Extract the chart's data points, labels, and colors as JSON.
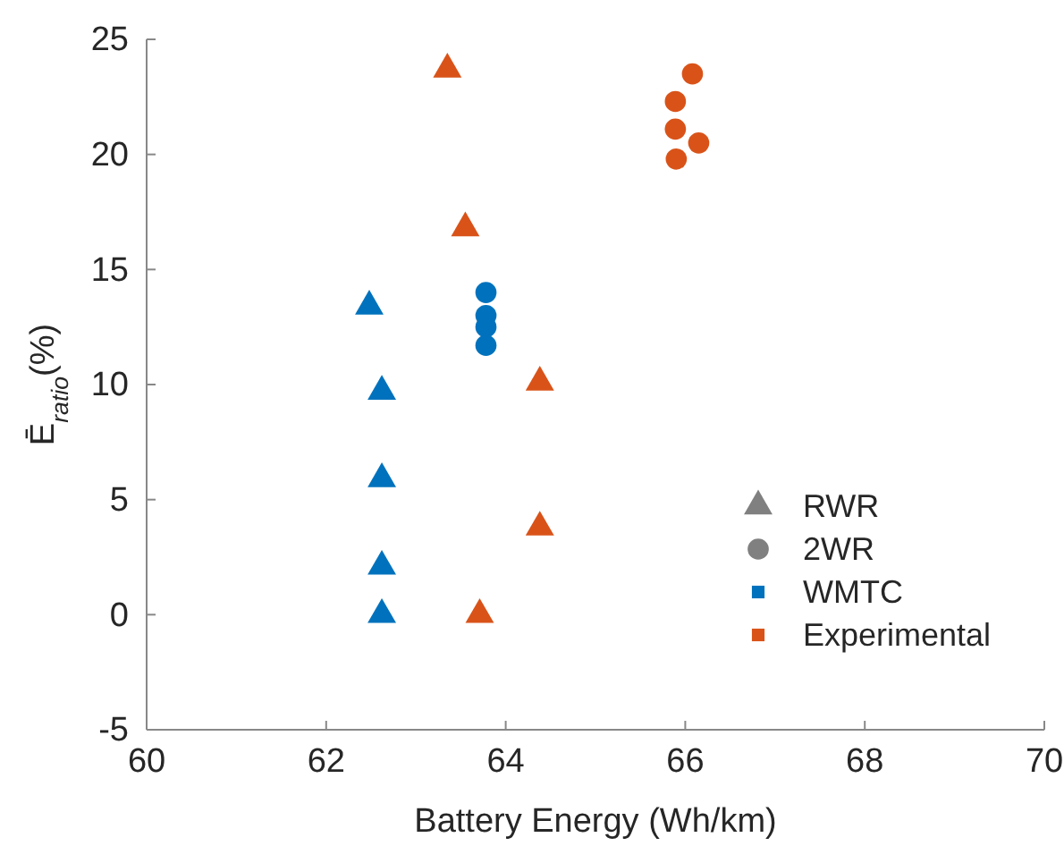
{
  "chart_data": {
    "type": "scatter",
    "xlabel": "Battery Energy (Wh/km)",
    "ylabel": "Ē$_{ratio}$(%)",
    "xlim": [
      60,
      70
    ],
    "xticks": [
      60,
      62,
      64,
      66,
      68,
      70
    ],
    "ylim": [
      -5,
      25
    ],
    "yticks": [
      -5,
      0,
      5,
      10,
      15,
      20,
      25
    ],
    "grid": false,
    "annotations": [
      "RWR",
      "2WR",
      "WMTC",
      "Experimental"
    ],
    "series": [
      {
        "color": "#0072bd",
        "marker": "triangle",
        "x": [
          62.48,
          62.62,
          62.62,
          62.62,
          62.62
        ],
        "values": [
          13.4,
          9.7,
          5.9,
          2.1,
          0
        ]
      },
      {
        "color": "#0072bd",
        "marker": "circle",
        "x": [
          63.78,
          63.78,
          63.78,
          63.78
        ],
        "values": [
          14.0,
          13.0,
          12.5,
          11.7
        ]
      },
      {
        "color": "#d95319",
        "marker": "triangle",
        "x": [
          63.35,
          63.55,
          64.38,
          64.38,
          63.71
        ],
        "values": [
          23.7,
          16.8,
          10.1,
          3.8,
          0
        ]
      },
      {
        "color": "#d95319",
        "marker": "circle",
        "x": [
          66.08,
          65.89,
          65.89,
          66.15,
          65.9
        ],
        "values": [
          23.5,
          22.3,
          21.1,
          20.5,
          19.8
        ]
      }
    ]
  }
}
